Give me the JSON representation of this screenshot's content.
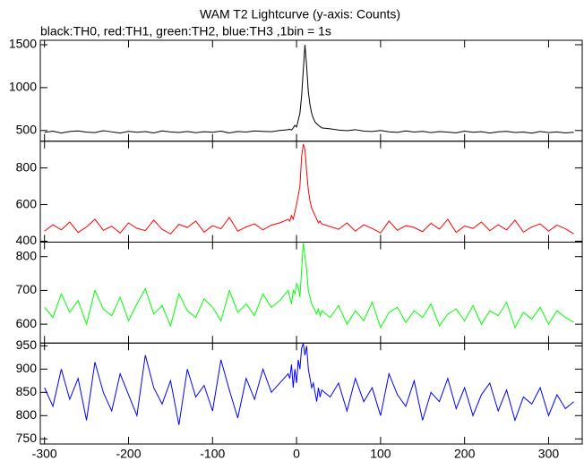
{
  "chart_data": {
    "type": "line",
    "title": "WAM T2 Lightcurve (y-axis: Counts)",
    "subtitle": "black:TH0, red:TH1, green:TH2, blue:TH3 ,1bin = 1s",
    "x": [
      -300,
      -290,
      -280,
      -270,
      -260,
      -250,
      -240,
      -230,
      -220,
      -210,
      -200,
      -190,
      -180,
      -170,
      -160,
      -150,
      -140,
      -130,
      -120,
      -110,
      -100,
      -90,
      -80,
      -70,
      -60,
      -50,
      -40,
      -30,
      -20,
      -10,
      -8,
      -6,
      -4,
      -2,
      0,
      2,
      4,
      6,
      8,
      10,
      12,
      14,
      16,
      18,
      20,
      22,
      24,
      26,
      28,
      30,
      40,
      50,
      60,
      70,
      80,
      90,
      100,
      110,
      120,
      130,
      140,
      150,
      160,
      170,
      180,
      190,
      200,
      210,
      220,
      230,
      240,
      250,
      260,
      270,
      280,
      290,
      300,
      310,
      320,
      330
    ],
    "xlim": [
      -305,
      340
    ],
    "xticks": [
      -300,
      -200,
      -100,
      0,
      100,
      200,
      300
    ],
    "series": [
      {
        "color": "#000000",
        "ylim": [
          375,
          1552
        ],
        "yticks": [
          500,
          1000,
          1500
        ],
        "values": [
          478,
          492,
          470,
          488,
          495,
          481,
          476,
          498,
          484,
          470,
          490,
          479,
          487,
          472,
          495,
          483,
          477,
          489,
          474,
          486,
          480,
          493,
          471,
          488,
          482,
          495,
          490,
          486,
          500,
          510,
          515,
          505,
          530,
          560,
          540,
          620,
          700,
          900,
          1200,
          1500,
          1250,
          950,
          800,
          700,
          640,
          600,
          580,
          560,
          545,
          530,
          520,
          505,
          498,
          510,
          492,
          488,
          500,
          485,
          478,
          495,
          482,
          490,
          476,
          487,
          481,
          473,
          492,
          479,
          486,
          470,
          484,
          490,
          477,
          482,
          469,
          488,
          475,
          483,
          472,
          480
        ]
      },
      {
        "color": "#ff0000",
        "ylim": [
          395,
          946
        ],
        "yticks": [
          400,
          600,
          800
        ],
        "values": [
          455,
          490,
          462,
          505,
          448,
          478,
          520,
          460,
          482,
          445,
          500,
          470,
          458,
          515,
          465,
          440,
          492,
          475,
          510,
          450,
          485,
          468,
          530,
          455,
          478,
          495,
          462,
          488,
          500,
          520,
          510,
          540,
          520,
          560,
          600,
          650,
          700,
          860,
          930,
          900,
          780,
          680,
          620,
          580,
          560,
          540,
          520,
          500,
          510,
          495,
          480,
          465,
          500,
          455,
          490,
          470,
          445,
          510,
          460,
          485,
          475,
          452,
          498,
          466,
          520,
          448,
          483,
          470,
          505,
          458,
          490,
          462,
          515,
          450,
          478,
          495,
          455,
          488,
          468,
          440
        ]
      },
      {
        "color": "#00ff00",
        "ylim": [
          544,
          843
        ],
        "yticks": [
          600,
          700,
          800
        ],
        "values": [
          650,
          620,
          690,
          635,
          670,
          600,
          700,
          645,
          625,
          680,
          610,
          660,
          705,
          630,
          655,
          595,
          690,
          640,
          620,
          675,
          650,
          610,
          700,
          635,
          660,
          625,
          690,
          650,
          670,
          700,
          680,
          660,
          700,
          690,
          720,
          710,
          680,
          760,
          840,
          800,
          760,
          700,
          680,
          660,
          650,
          640,
          630,
          645,
          625,
          640,
          620,
          655,
          600,
          640,
          610,
          665,
          590,
          635,
          650,
          605,
          640,
          620,
          660,
          595,
          630,
          645,
          610,
          655,
          600,
          640,
          625,
          665,
          590,
          635,
          615,
          650,
          600,
          640,
          620,
          605
        ]
      },
      {
        "color": "#0000ff",
        "ylim": [
          739,
          956
        ],
        "yticks": [
          750,
          800,
          850,
          900,
          950
        ],
        "values": [
          860,
          820,
          900,
          835,
          880,
          790,
          915,
          850,
          810,
          890,
          845,
          800,
          930,
          860,
          825,
          875,
          780,
          900,
          840,
          865,
          810,
          920,
          855,
          795,
          880,
          835,
          900,
          850,
          870,
          890,
          880,
          910,
          860,
          900,
          870,
          920,
          900,
          945,
          955,
          930,
          950,
          900,
          880,
          860,
          870,
          850,
          830,
          860,
          840,
          855,
          840,
          870,
          810,
          880,
          830,
          860,
          800,
          890,
          845,
          820,
          875,
          790,
          850,
          830,
          880,
          815,
          860,
          800,
          845,
          870,
          810,
          855,
          790,
          840,
          825,
          860,
          800,
          845,
          815,
          830
        ]
      }
    ]
  }
}
